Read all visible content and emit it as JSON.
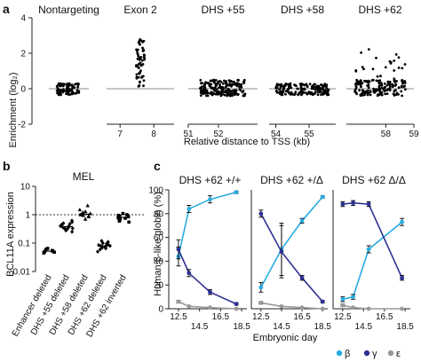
{
  "panels": {
    "a": "a",
    "b": "b",
    "c": "c"
  },
  "chart_data": [
    {
      "type": "scatter",
      "panel": "a",
      "ylabel": "Enrichment (log₂)",
      "xlabel": "Relative distance to TSS (kb)",
      "yticks": [
        "-2",
        "0",
        "2",
        "4"
      ],
      "ylim": [
        -2,
        4
      ],
      "facets": [
        {
          "title": "Nontargeting",
          "xticks": [],
          "cluster": {
            "lo": -0.35,
            "hi": 0.3,
            "n": 90
          }
        },
        {
          "title": "Exon 2",
          "xticks": [
            "7",
            "8"
          ],
          "xlim": [
            6.6,
            8.6
          ],
          "cluster": {
            "x": 7.6,
            "lo": 0.0,
            "hi": 2.8,
            "n": 60
          }
        },
        {
          "title": "DHS +55",
          "xticks": [
            "51",
            "52"
          ],
          "xlim": [
            51.0,
            53.3
          ],
          "cluster": {
            "x0": 51.4,
            "x1": 52.9,
            "lo": -0.4,
            "hi": 0.5,
            "n": 190
          }
        },
        {
          "title": "DHS +58",
          "xticks": [
            "54",
            "55"
          ],
          "xlim": [
            53.8,
            55.8
          ],
          "cluster": {
            "x0": 54.0,
            "x1": 55.6,
            "lo": -0.35,
            "hi": 0.3,
            "n": 170
          }
        },
        {
          "title": "DHS +62",
          "xticks": [
            "58",
            "59"
          ],
          "xlim": [
            56.6,
            59.0
          ],
          "cluster": {
            "x0": 56.9,
            "x1": 58.7,
            "lo": -0.4,
            "hi": 2.3,
            "n": 170
          }
        }
      ]
    },
    {
      "type": "scatter",
      "panel": "b",
      "title": "MEL",
      "ylabel": "BCL11A expression",
      "yticks": [
        "10",
        "1",
        "0.1",
        "0.01"
      ],
      "ylim_log10": [
        -2,
        1
      ],
      "reference_line": 1,
      "categories": [
        "Enhancer deleted",
        "DHS +55 deleted",
        "DHS +58 deleted",
        "DHS +62 deleted",
        "DHS +62 inverted"
      ],
      "values": [
        [
          0.048,
          0.052,
          0.055,
          0.06,
          0.045,
          0.065,
          0.05
        ],
        [
          0.28,
          0.35,
          0.42,
          0.5,
          0.38,
          0.32,
          0.55,
          0.45,
          0.3,
          0.25,
          0.4,
          0.62,
          0.36,
          0.47,
          0.33
        ],
        [
          0.7,
          0.85,
          1.0,
          1.1,
          1.3,
          0.9,
          1.2,
          0.95,
          1.05,
          1.5,
          2.1
        ],
        [
          0.06,
          0.07,
          0.08,
          0.09,
          0.1,
          0.065,
          0.075,
          0.11,
          0.085,
          0.05,
          0.12,
          0.095,
          0.07,
          0.08
        ],
        [
          0.55,
          0.65,
          0.8,
          0.9,
          1.0,
          0.7,
          0.85,
          0.75,
          0.95,
          1.1,
          0.6,
          0.78
        ]
      ]
    },
    {
      "type": "line",
      "panel": "c",
      "ylabel": "Human β-like globin (%)",
      "xlabel": "Embryonic day",
      "yticks": [
        "0",
        "20",
        "40",
        "60",
        "80",
        "100"
      ],
      "ylim": [
        0,
        100
      ],
      "x": [
        12.5,
        14.5,
        16.5,
        18.5
      ],
      "xticks_top": [
        "12.5",
        "16.5"
      ],
      "xticks_bottom": [
        "14.5",
        "18.5"
      ],
      "legend": [
        {
          "symbol": "β",
          "color": "#29abe2"
        },
        {
          "symbol": "γ",
          "color": "#2e3192"
        },
        {
          "symbol": "ε",
          "color": "#999999"
        }
      ],
      "facets": [
        {
          "title": "DHS +62 +/+",
          "series": [
            {
              "color": "#29abe2",
              "x": [
                12.5,
                13.5,
                15.5,
                18.0
              ],
              "values": [
                44,
                84,
                92,
                98
              ],
              "err": [
                8,
                3,
                3,
                1
              ]
            },
            {
              "color": "#2e3192",
              "x": [
                12.5,
                13.5,
                15.5,
                18.0
              ],
              "values": [
                50,
                30,
                14,
                4
              ],
              "err": [
                8,
                3,
                2,
                1
              ]
            },
            {
              "color": "#999999",
              "x": [
                12.5,
                13.5,
                15.5,
                18.0
              ],
              "values": [
                6,
                2,
                1,
                0
              ],
              "err": [
                1,
                0,
                0,
                0
              ]
            }
          ]
        },
        {
          "title": "DHS +62 +/Δ",
          "series": [
            {
              "color": "#29abe2",
              "x": [
                12.5,
                14.5,
                16.5,
                18.5
              ],
              "values": [
                18,
                50,
                74,
                94
              ],
              "err": [
                4,
                22,
                2,
                1
              ]
            },
            {
              "color": "#2e3192",
              "x": [
                12.5,
                14.5,
                16.5,
                18.5
              ],
              "values": [
                80,
                48,
                26,
                6
              ],
              "err": [
                3,
                22,
                2,
                1
              ]
            },
            {
              "color": "#999999",
              "x": [
                12.5,
                14.5,
                16.5,
                18.5
              ],
              "values": [
                5,
                2,
                1,
                0
              ],
              "err": [
                1,
                0,
                0,
                0
              ]
            }
          ]
        },
        {
          "title": "DHS +62 Δ/Δ",
          "series": [
            {
              "color": "#29abe2",
              "x": [
                12.5,
                13.5,
                15.0,
                18.2
              ],
              "values": [
                8,
                10,
                50,
                73
              ],
              "err": [
                2,
                2,
                3,
                3
              ]
            },
            {
              "color": "#2e3192",
              "x": [
                12.5,
                13.5,
                15.0,
                18.2
              ],
              "values": [
                88,
                89,
                88,
                26
              ],
              "err": [
                2,
                2,
                2,
                2
              ]
            },
            {
              "color": "#999999",
              "x": [
                12.5,
                13.5,
                15.0,
                18.2
              ],
              "values": [
                3,
                1,
                0,
                0
              ],
              "err": [
                1,
                0,
                0,
                0
              ]
            }
          ]
        }
      ]
    }
  ]
}
